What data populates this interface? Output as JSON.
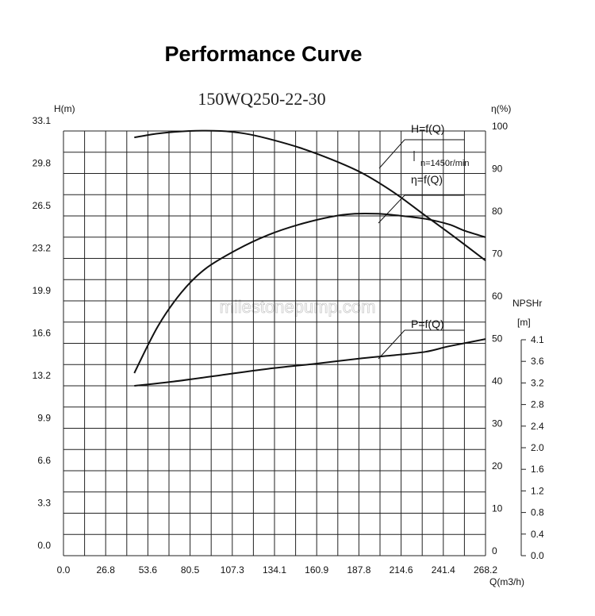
{
  "page_title": "Performance Curve",
  "model": "150WQ250-22-30",
  "watermark": "milestonepump.com",
  "chart_data": {
    "type": "line",
    "xlabel": "Q(m3/h)",
    "ylabel_left": "H(m)",
    "ylabel_right": "η(%)",
    "ylabel_npsh": "NPSHr",
    "ylabel_npsh_unit": "[m]",
    "xlim": [
      0,
      268.2
    ],
    "ylim_left": [
      0,
      33.1
    ],
    "ylim_right": [
      0,
      100
    ],
    "ylim_npsh": [
      0,
      4.1
    ],
    "x_ticks": [
      "0.0",
      "26.8",
      "53.6",
      "80.5",
      "107.3",
      "134.1",
      "160.9",
      "187.8",
      "214.6",
      "241.4",
      "268.2"
    ],
    "y_left_ticks": [
      "0.0",
      "3.3",
      "6.6",
      "9.9",
      "13.2",
      "16.6",
      "19.9",
      "23.2",
      "26.5",
      "29.8",
      "33.1"
    ],
    "y_right_ticks": [
      "0",
      "10",
      "20",
      "30",
      "40",
      "50",
      "60",
      "70",
      "80",
      "90",
      "100"
    ],
    "y_npsh_ticks": [
      "0.0",
      "0.4",
      "0.8",
      "1.2",
      "1.6",
      "2.0",
      "2.4",
      "2.8",
      "3.2",
      "3.6",
      "4.1"
    ],
    "grid": true,
    "annotation": "n=1450r/min",
    "series": [
      {
        "name": "H=f(Q)",
        "axis": "left",
        "x": [
          45,
          60,
          80,
          100,
          115,
          130,
          150,
          170,
          190,
          210,
          230,
          250,
          268.2
        ],
        "y": [
          32.6,
          32.9,
          33.1,
          33.1,
          32.9,
          32.5,
          31.8,
          30.9,
          29.8,
          28.3,
          26.5,
          24.7,
          23.0
        ]
      },
      {
        "name": "η=f(Q)",
        "axis": "right",
        "x": [
          45,
          60,
          75,
          90,
          110,
          130,
          150,
          170,
          185,
          200,
          215,
          230,
          245,
          255,
          268.2
        ],
        "y": [
          43,
          54,
          62,
          67.5,
          72,
          75.5,
          78,
          79.8,
          80.5,
          80.5,
          80,
          79.3,
          78,
          76.5,
          75
        ]
      },
      {
        "name": "P=f(Q)",
        "axis": "right",
        "x": [
          45,
          70,
          100,
          130,
          160,
          190,
          210,
          230,
          245,
          268.2
        ],
        "y": [
          40,
          41,
          42.5,
          44,
          45.2,
          46.5,
          47.2,
          48,
          49.3,
          51
        ]
      }
    ]
  }
}
